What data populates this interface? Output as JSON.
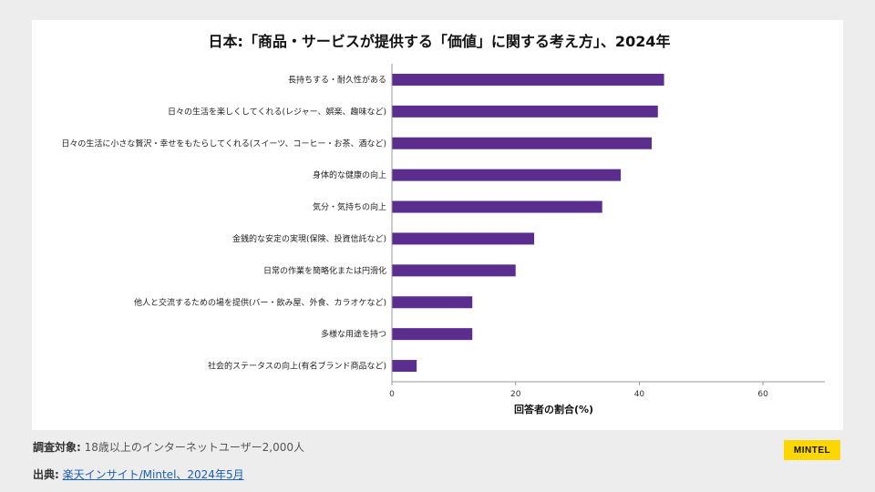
{
  "chart_data": {
    "type": "bar",
    "orientation": "horizontal",
    "title": "日本:「商品・サービスが提供する「価値」に関する考え方」、2024年",
    "xlabel": "回答者の割合(%)",
    "ylabel": "",
    "xlim": [
      0,
      70
    ],
    "xticks": [
      0,
      20,
      40,
      60
    ],
    "grid": false,
    "bar_color": "#5b2d8e",
    "categories": [
      "長持ちする・耐久性がある",
      "日々の生活を楽しくしてくれる(レジャー、娯楽、趣味など)",
      "日々の生活に小さな贅沢・幸せをもたらしてくれる(スイーツ、コーヒー・お茶、酒など)",
      "身体的な健康の向上",
      "気分・気持ちの向上",
      "金銭的な安定の実現(保険、投資信託など)",
      "日常の作業を簡略化または円滑化",
      "他人と交流するための場を提供(バー・飲み屋、外食、カラオケなど)",
      "多様な用途を持つ",
      "社会的ステータスの向上(有名ブランド商品など)"
    ],
    "values": [
      44,
      43,
      42,
      37,
      34,
      23,
      20,
      13,
      13,
      4
    ]
  },
  "footer": {
    "survey_label": "調査対象:",
    "survey_text": "18歳以上のインターネットユーザー2,000人",
    "source_label": "出典:",
    "source_text": "楽天インサイト/Mintel、2024年5月"
  },
  "brand": {
    "logo_text": "MINTEL",
    "logo_color": "#ffd700"
  }
}
